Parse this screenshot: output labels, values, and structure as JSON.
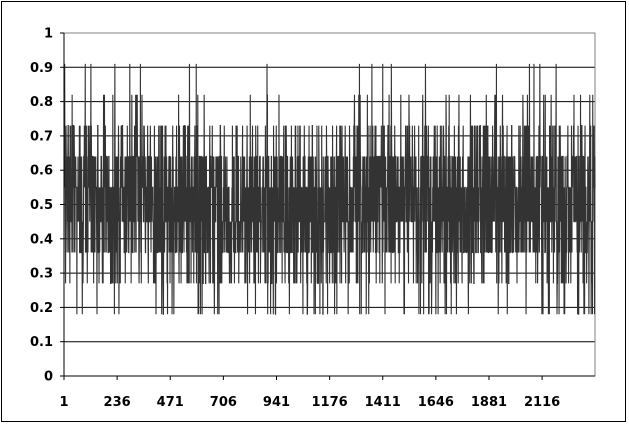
{
  "chart_data": {
    "type": "line",
    "title": "",
    "xlabel": "",
    "ylabel": "",
    "ylim": [
      0,
      1
    ],
    "xlim": [
      1,
      2350
    ],
    "grid": "horizontal",
    "legend": "none",
    "colors": {
      "line": "#333333",
      "grid": "#000000",
      "plot_border": "#808080"
    },
    "y_ticks": [
      "0",
      "0.1",
      "0.2",
      "0.3",
      "0.4",
      "0.5",
      "0.6",
      "0.7",
      "0.8",
      "0.9",
      "1"
    ],
    "x_ticks": [
      {
        "value": 1,
        "label": "1"
      },
      {
        "value": 236,
        "label": "236"
      },
      {
        "value": 471,
        "label": "471"
      },
      {
        "value": 706,
        "label": "706"
      },
      {
        "value": 941,
        "label": "941"
      },
      {
        "value": 1176,
        "label": "1176"
      },
      {
        "value": 1411,
        "label": "1411"
      },
      {
        "value": 1646,
        "label": "1646"
      },
      {
        "value": 1881,
        "label": "1881"
      },
      {
        "value": 2116,
        "label": "2116"
      }
    ],
    "series": [
      {
        "levels": [
          0.18,
          0.27,
          0.36,
          0.45,
          0.55,
          0.64,
          0.73,
          0.82,
          0.91
        ],
        "points_count": 2350,
        "note_values": "approximately uniform oscillation between 0.36 and 0.64 with occasional spikes"
      }
    ]
  }
}
